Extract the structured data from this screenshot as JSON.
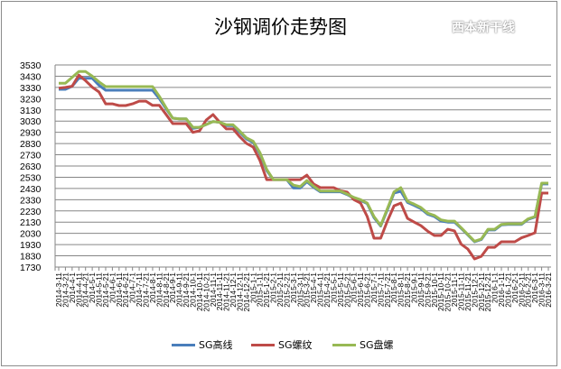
{
  "chart_data": {
    "type": "line",
    "title": "沙钢调价走势图",
    "watermark": "西本新干线",
    "ylim": [
      1730,
      3530
    ],
    "yticks": [
      1730,
      1830,
      1930,
      2030,
      2130,
      2230,
      2330,
      2430,
      2530,
      2630,
      2730,
      2830,
      2930,
      3030,
      3130,
      3230,
      3330,
      3430,
      3530
    ],
    "grid": true,
    "legend_position": "bottom",
    "categories": [
      "2014-3-11",
      "2014-3-21",
      "2014-4-1",
      "2014-4-11",
      "2014-4-21",
      "2014-5-1",
      "2014-5-11",
      "2014-5-21",
      "2014-6-1",
      "2014-6-11",
      "2014-6-21",
      "2014-7-1",
      "2014-7-11",
      "2014-7-21",
      "2014-8-1",
      "2014-8-11",
      "2014-8-21",
      "2014-9-1",
      "2014-9-11",
      "2014-9-21",
      "2014-10-1",
      "2014-10-11",
      "2014-10-21",
      "2014-11-1",
      "2014-11-11",
      "2014-11-21",
      "2014-12-1",
      "2014-12-11",
      "2014-12-21",
      "2015-1-1",
      "2015-1-11",
      "2015-1-21",
      "2015-2-1",
      "2015-2-11",
      "2015-2-21",
      "2015-3-1",
      "2015-3-11",
      "2015-3-21",
      "2015-4-1",
      "2015-4-11",
      "2015-4-21",
      "2015-5-1",
      "2015-5-11",
      "2015-5-21",
      "2015-6-1",
      "2015-6-11",
      "2015-6-21",
      "2015-7-1",
      "2015-7-11",
      "2015-7-21",
      "2015-8-1",
      "2015-8-11",
      "2015-8-21",
      "2015-9-1",
      "2015-9-11",
      "2015-9-21",
      "2015-10-1",
      "2015-10-11",
      "2015-10-21",
      "2015-11-1",
      "2015-11-11",
      "2015-11-21",
      "2015-12-1",
      "2015-12-11",
      "2015-12-21",
      "2016-1-1",
      "2016-1-11",
      "2016-1-21",
      "2016-2-1",
      "2016-2-11",
      "2016-2-21",
      "2016-3-1",
      "2016-3-11",
      "2016-3-21"
    ],
    "series": [
      {
        "name": "SG高线",
        "color": "#4a7ebb",
        "values": [
          3313,
          3313,
          3340,
          3412,
          3412,
          3412,
          3350,
          3305,
          3305,
          3305,
          3305,
          3305,
          3305,
          3305,
          3305,
          3230,
          3140,
          3056,
          3050,
          3050,
          2965,
          2975,
          3000,
          3025,
          3020,
          2990,
          2990,
          2930,
          2870,
          2840,
          2740,
          2590,
          2509,
          2509,
          2509,
          2434,
          2434,
          2490,
          2440,
          2400,
          2400,
          2400,
          2400,
          2375,
          2345,
          2325,
          2295,
          2170,
          2095,
          2240,
          2390,
          2405,
          2305,
          2280,
          2250,
          2200,
          2180,
          2140,
          2130,
          2130,
          2075,
          2015,
          1955,
          1975,
          2060,
          2060,
          2105,
          2110,
          2110,
          2110,
          2155,
          2175,
          2470,
          2470
        ]
      },
      {
        "name": "SG螺纹",
        "color": "#be4b48",
        "values": [
          3323,
          3330,
          3340,
          3439,
          3390,
          3332,
          3290,
          3184,
          3184,
          3168,
          3168,
          3184,
          3208,
          3208,
          3170,
          3170,
          3090,
          3008,
          3008,
          3008,
          2930,
          2943,
          3040,
          3088,
          3020,
          2960,
          2960,
          2890,
          2831,
          2798,
          2680,
          2509,
          2509,
          2509,
          2509,
          2509,
          2509,
          2549,
          2470,
          2437,
          2437,
          2437,
          2410,
          2397,
          2330,
          2300,
          2180,
          1987,
          1987,
          2140,
          2276,
          2300,
          2163,
          2130,
          2099,
          2050,
          2011,
          2011,
          2067,
          2052,
          1933,
          1890,
          1802,
          1826,
          1906,
          1906,
          1955,
          1955,
          1955,
          1990,
          2011,
          2035,
          2389,
          2389
        ]
      },
      {
        "name": "SG盘螺",
        "color": "#98b954",
        "values": [
          3367,
          3367,
          3420,
          3471,
          3471,
          3430,
          3380,
          3337,
          3337,
          3337,
          3337,
          3337,
          3337,
          3337,
          3337,
          3250,
          3150,
          3056,
          3050,
          3050,
          2975,
          2975,
          3000,
          3025,
          3020,
          2997,
          2997,
          2940,
          2880,
          2850,
          2750,
          2600,
          2509,
          2509,
          2509,
          2460,
          2447,
          2501,
          2450,
          2407,
          2407,
          2407,
          2407,
          2380,
          2350,
          2330,
          2300,
          2180,
          2100,
          2250,
          2400,
          2437,
          2316,
          2290,
          2260,
          2210,
          2190,
          2150,
          2139,
          2139,
          2080,
          2020,
          1960,
          1980,
          2067,
          2067,
          2110,
          2115,
          2115,
          2115,
          2160,
          2180,
          2477,
          2477
        ]
      }
    ]
  }
}
